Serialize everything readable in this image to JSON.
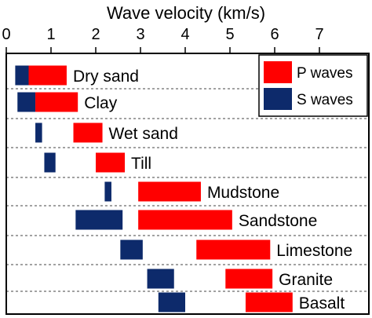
{
  "chart_data": {
    "type": "bar",
    "orientation": "horizontal-range",
    "title": "Wave velocity (km/s)",
    "xlabel": "Wave velocity (km/s)",
    "ylabel": "",
    "xlim": [
      0,
      8
    ],
    "xticks": [
      "0",
      "1",
      "2",
      "3",
      "4",
      "5",
      "6",
      "7"
    ],
    "x_axis_position": "top",
    "grid": "dashed row separators",
    "legend_position": "top-right",
    "categories": [
      "Dry sand",
      "Clay",
      "Wet sand",
      "Till",
      "Mudstone",
      "Sandstone",
      "Limestone",
      "Granite",
      "Basalt"
    ],
    "series": [
      {
        "name": "P waves",
        "color": "#ff0000",
        "ranges": [
          [
            0.5,
            1.35
          ],
          [
            0.65,
            1.6
          ],
          [
            1.5,
            2.15
          ],
          [
            2.0,
            2.65
          ],
          [
            2.95,
            4.35
          ],
          [
            2.95,
            5.05
          ],
          [
            4.25,
            5.9
          ],
          [
            4.9,
            5.95
          ],
          [
            5.35,
            6.4
          ]
        ]
      },
      {
        "name": "S waves",
        "color": "#0d2a6b",
        "ranges": [
          [
            0.2,
            0.5
          ],
          [
            0.25,
            0.65
          ],
          [
            0.65,
            0.8
          ],
          [
            0.85,
            1.1
          ],
          [
            2.2,
            2.35
          ],
          [
            1.55,
            2.6
          ],
          [
            2.55,
            3.05
          ],
          [
            3.15,
            3.75
          ],
          [
            3.4,
            4.0
          ]
        ]
      }
    ]
  }
}
